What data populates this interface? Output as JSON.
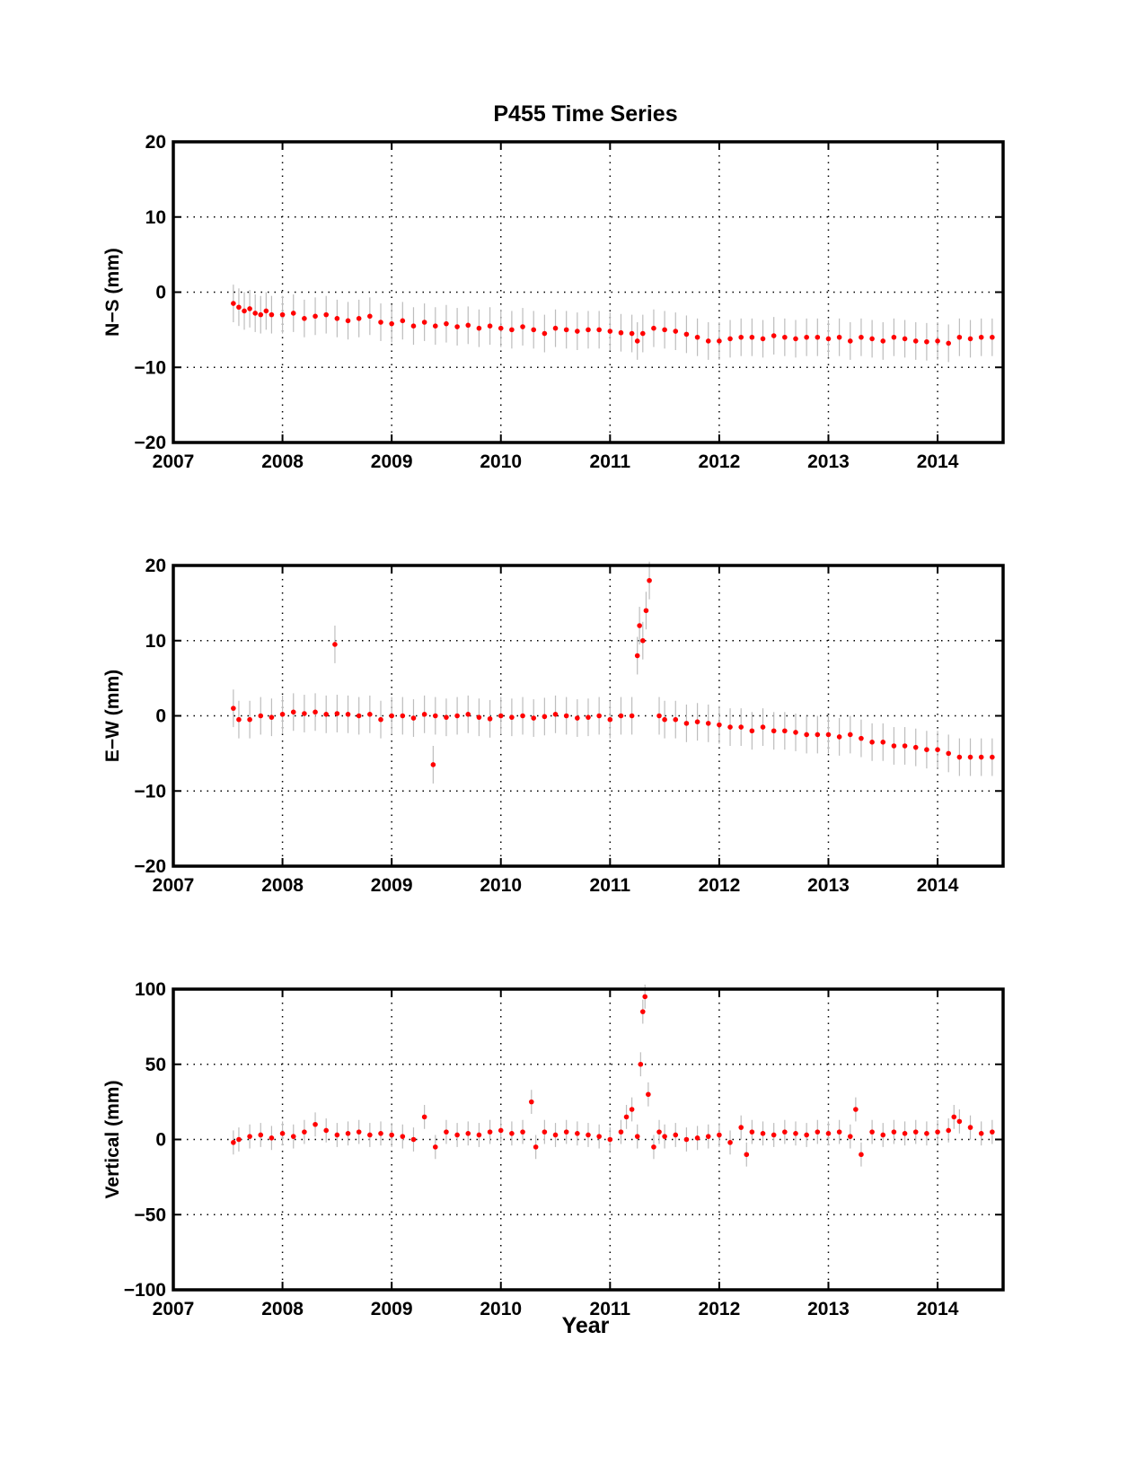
{
  "figure": {
    "title": "P455 Time Series",
    "xlabel": "Year"
  },
  "colors": {
    "points": "#ff0000",
    "errorbars": "#bdbdbd",
    "axes": "#000000",
    "grid": "#000000"
  },
  "chart_data": [
    {
      "type": "scatter",
      "ylabel": "N−S (mm)",
      "xlim": [
        2007,
        2014.6
      ],
      "ylim": [
        -20,
        20
      ],
      "xticks": [
        2007,
        2008,
        2009,
        2010,
        2011,
        2012,
        2013,
        2014
      ],
      "yticks": [
        -20,
        -10,
        0,
        10,
        20
      ],
      "ytick_labels": [
        "−20",
        "−10",
        "0",
        "10",
        "20"
      ],
      "grid": true,
      "series": [
        {
          "marker": "red-dot-with-gray-errorbars",
          "x": [
            2007.55,
            2007.6,
            2007.65,
            2007.7,
            2007.75,
            2007.8,
            2007.85,
            2007.9,
            2008.0,
            2008.1,
            2008.2,
            2008.3,
            2008.4,
            2008.5,
            2008.6,
            2008.7,
            2008.8,
            2008.9,
            2009.0,
            2009.1,
            2009.2,
            2009.3,
            2009.4,
            2009.5,
            2009.6,
            2009.7,
            2009.8,
            2009.9,
            2010.0,
            2010.1,
            2010.2,
            2010.3,
            2010.4,
            2010.5,
            2010.6,
            2010.7,
            2010.8,
            2010.9,
            2011.0,
            2011.1,
            2011.2,
            2011.25,
            2011.3,
            2011.4,
            2011.5,
            2011.6,
            2011.7,
            2011.8,
            2011.9,
            2012.0,
            2012.1,
            2012.2,
            2012.3,
            2012.4,
            2012.5,
            2012.6,
            2012.7,
            2012.8,
            2012.9,
            2013.0,
            2013.1,
            2013.2,
            2013.3,
            2013.4,
            2013.5,
            2013.6,
            2013.7,
            2013.8,
            2013.9,
            2014.0,
            2014.1,
            2014.2,
            2014.3,
            2014.4,
            2014.5
          ],
          "y": [
            -1.5,
            -2.0,
            -2.5,
            -2.2,
            -2.8,
            -3.0,
            -2.5,
            -3.0,
            -3.0,
            -2.8,
            -3.5,
            -3.2,
            -3.0,
            -3.5,
            -3.8,
            -3.5,
            -3.2,
            -4.0,
            -4.2,
            -3.8,
            -4.5,
            -4.0,
            -4.5,
            -4.2,
            -4.6,
            -4.4,
            -4.8,
            -4.5,
            -4.8,
            -5.0,
            -4.6,
            -5.0,
            -5.5,
            -4.8,
            -5.0,
            -5.2,
            -5.0,
            -5.0,
            -5.2,
            -5.4,
            -5.5,
            -6.5,
            -5.5,
            -4.8,
            -5.0,
            -5.2,
            -5.6,
            -6.0,
            -6.5,
            -6.5,
            -6.2,
            -6.0,
            -6.0,
            -6.2,
            -5.8,
            -6.0,
            -6.2,
            -6.0,
            -6.0,
            -6.2,
            -6.0,
            -6.5,
            -6.0,
            -6.2,
            -6.5,
            -6.0,
            -6.2,
            -6.5,
            -6.6,
            -6.5,
            -6.8,
            -6.0,
            -6.2,
            -6.0,
            -6.0
          ],
          "yerr": [
            2.5,
            2.5,
            2.5,
            2.5,
            2.5,
            2.5,
            2.5,
            2.5,
            2.5,
            2.5,
            2.5,
            2.5,
            2.5,
            2.5,
            2.5,
            2.5,
            2.5,
            2.5,
            2.5,
            2.5,
            2.5,
            2.5,
            2.5,
            2.5,
            2.5,
            2.5,
            2.5,
            2.5,
            2.5,
            2.5,
            2.5,
            2.5,
            2.5,
            2.5,
            2.5,
            2.5,
            2.5,
            2.5,
            2.5,
            2.5,
            2.5,
            2.5,
            2.5,
            2.5,
            2.5,
            2.5,
            2.5,
            2.5,
            2.5,
            2.5,
            2.5,
            2.5,
            2.5,
            2.5,
            2.5,
            2.5,
            2.5,
            2.5,
            2.5,
            2.5,
            2.5,
            2.5,
            2.5,
            2.5,
            2.5,
            2.5,
            2.5,
            2.5,
            2.5,
            2.5,
            2.5,
            2.5,
            2.5,
            2.5,
            2.5
          ]
        }
      ]
    },
    {
      "type": "scatter",
      "ylabel": "E−W (mm)",
      "xlim": [
        2007,
        2014.6
      ],
      "ylim": [
        -20,
        20
      ],
      "xticks": [
        2007,
        2008,
        2009,
        2010,
        2011,
        2012,
        2013,
        2014
      ],
      "yticks": [
        -20,
        -10,
        0,
        10,
        20
      ],
      "ytick_labels": [
        "−20",
        "−10",
        "0",
        "10",
        "20"
      ],
      "grid": true,
      "series": [
        {
          "marker": "red-dot-with-gray-errorbars",
          "x": [
            2007.55,
            2007.6,
            2007.7,
            2007.8,
            2007.9,
            2008.0,
            2008.1,
            2008.2,
            2008.3,
            2008.4,
            2008.48,
            2008.5,
            2008.6,
            2008.7,
            2008.8,
            2008.9,
            2009.0,
            2009.1,
            2009.2,
            2009.3,
            2009.38,
            2009.4,
            2009.5,
            2009.6,
            2009.7,
            2009.8,
            2009.9,
            2010.0,
            2010.1,
            2010.2,
            2010.3,
            2010.4,
            2010.5,
            2010.6,
            2010.7,
            2010.8,
            2010.9,
            2011.0,
            2011.1,
            2011.2,
            2011.25,
            2011.27,
            2011.3,
            2011.33,
            2011.36,
            2011.45,
            2011.5,
            2011.6,
            2011.7,
            2011.8,
            2011.9,
            2012.0,
            2012.1,
            2012.2,
            2012.3,
            2012.4,
            2012.5,
            2012.6,
            2012.7,
            2012.8,
            2012.9,
            2013.0,
            2013.1,
            2013.2,
            2013.3,
            2013.4,
            2013.5,
            2013.6,
            2013.7,
            2013.8,
            2013.9,
            2014.0,
            2014.1,
            2014.2,
            2014.3,
            2014.4,
            2014.5
          ],
          "y": [
            1.0,
            -0.5,
            -0.5,
            0.0,
            -0.2,
            0.2,
            0.5,
            0.3,
            0.5,
            0.2,
            9.5,
            0.3,
            0.2,
            0.0,
            0.2,
            -0.5,
            0.0,
            0.0,
            -0.3,
            0.2,
            -6.5,
            0.0,
            -0.2,
            0.0,
            0.2,
            -0.2,
            -0.4,
            0.0,
            -0.2,
            0.0,
            -0.3,
            -0.1,
            0.2,
            0.0,
            -0.3,
            -0.2,
            0.0,
            -0.5,
            0.0,
            0.0,
            8.0,
            12.0,
            10.0,
            14.0,
            18.0,
            0.0,
            -0.5,
            -0.5,
            -1.0,
            -0.8,
            -1.0,
            -1.2,
            -1.5,
            -1.5,
            -2.0,
            -1.5,
            -2.0,
            -2.0,
            -2.2,
            -2.5,
            -2.5,
            -2.5,
            -2.8,
            -2.5,
            -3.0,
            -3.5,
            -3.5,
            -4.0,
            -4.0,
            -4.2,
            -4.5,
            -4.5,
            -5.0,
            -5.5,
            -5.5,
            -5.5,
            -5.5
          ],
          "yerr": [
            2.5,
            2.5,
            2.5,
            2.5,
            2.5,
            2.5,
            2.5,
            2.5,
            2.5,
            2.5,
            2.5,
            2.5,
            2.5,
            2.5,
            2.5,
            2.5,
            2.5,
            2.5,
            2.5,
            2.5,
            2.5,
            2.5,
            2.5,
            2.5,
            2.5,
            2.5,
            2.5,
            2.5,
            2.5,
            2.5,
            2.5,
            2.5,
            2.5,
            2.5,
            2.5,
            2.5,
            2.5,
            2.5,
            2.5,
            2.5,
            2.5,
            2.5,
            2.5,
            2.5,
            2.5,
            2.5,
            2.5,
            2.5,
            2.5,
            2.5,
            2.5,
            2.5,
            2.5,
            2.5,
            2.5,
            2.5,
            2.5,
            2.5,
            2.5,
            2.5,
            2.5,
            2.5,
            2.5,
            2.5,
            2.5,
            2.5,
            2.5,
            2.5,
            2.5,
            2.5,
            2.5,
            2.5,
            2.5,
            2.5,
            2.5,
            2.5,
            2.5
          ]
        }
      ]
    },
    {
      "type": "scatter",
      "ylabel": "Vertical (mm)",
      "xlim": [
        2007,
        2014.6
      ],
      "ylim": [
        -100,
        100
      ],
      "xticks": [
        2007,
        2008,
        2009,
        2010,
        2011,
        2012,
        2013,
        2014
      ],
      "yticks": [
        -100,
        -50,
        0,
        50,
        100
      ],
      "ytick_labels": [
        "−100",
        "−50",
        "0",
        "50",
        "100"
      ],
      "grid": true,
      "series": [
        {
          "marker": "red-dot-with-gray-errorbars",
          "x": [
            2007.55,
            2007.6,
            2007.7,
            2007.8,
            2007.9,
            2008.0,
            2008.1,
            2008.2,
            2008.3,
            2008.4,
            2008.5,
            2008.6,
            2008.7,
            2008.8,
            2008.9,
            2009.0,
            2009.1,
            2009.2,
            2009.3,
            2009.4,
            2009.5,
            2009.6,
            2009.7,
            2009.8,
            2009.9,
            2010.0,
            2010.1,
            2010.2,
            2010.28,
            2010.32,
            2010.4,
            2010.5,
            2010.6,
            2010.7,
            2010.8,
            2010.9,
            2011.0,
            2011.1,
            2011.15,
            2011.2,
            2011.25,
            2011.28,
            2011.3,
            2011.32,
            2011.35,
            2011.4,
            2011.45,
            2011.5,
            2011.6,
            2011.7,
            2011.8,
            2011.9,
            2012.0,
            2012.1,
            2012.2,
            2012.25,
            2012.3,
            2012.4,
            2012.5,
            2012.6,
            2012.7,
            2012.8,
            2012.9,
            2013.0,
            2013.1,
            2013.2,
            2013.25,
            2013.3,
            2013.4,
            2013.5,
            2013.6,
            2013.7,
            2013.8,
            2013.9,
            2014.0,
            2014.1,
            2014.15,
            2014.2,
            2014.3,
            2014.4,
            2014.5
          ],
          "y": [
            -2,
            0,
            2,
            3,
            1,
            4,
            2,
            5,
            10,
            6,
            3,
            4,
            5,
            3,
            4,
            3,
            2,
            0,
            15,
            -5,
            5,
            3,
            4,
            3,
            5,
            6,
            4,
            5,
            25,
            -5,
            5,
            3,
            5,
            4,
            3,
            2,
            0,
            5,
            15,
            20,
            2,
            50,
            85,
            95,
            30,
            -5,
            5,
            2,
            3,
            0,
            1,
            2,
            3,
            -2,
            8,
            -10,
            5,
            4,
            3,
            5,
            4,
            3,
            5,
            4,
            5,
            2,
            20,
            -10,
            5,
            3,
            5,
            4,
            5,
            4,
            5,
            6,
            15,
            12,
            8,
            4,
            5
          ],
          "yerr": [
            8,
            8,
            8,
            8,
            8,
            8,
            8,
            8,
            8,
            8,
            8,
            8,
            8,
            8,
            8,
            8,
            8,
            8,
            8,
            8,
            8,
            8,
            8,
            8,
            8,
            8,
            8,
            8,
            8,
            8,
            8,
            8,
            8,
            8,
            8,
            8,
            8,
            8,
            8,
            8,
            8,
            8,
            8,
            8,
            8,
            8,
            8,
            8,
            8,
            8,
            8,
            8,
            8,
            8,
            8,
            8,
            8,
            8,
            8,
            8,
            8,
            8,
            8,
            8,
            8,
            8,
            8,
            8,
            8,
            8,
            8,
            8,
            8,
            8,
            8,
            8,
            8,
            8,
            8,
            8,
            8
          ]
        }
      ]
    }
  ]
}
